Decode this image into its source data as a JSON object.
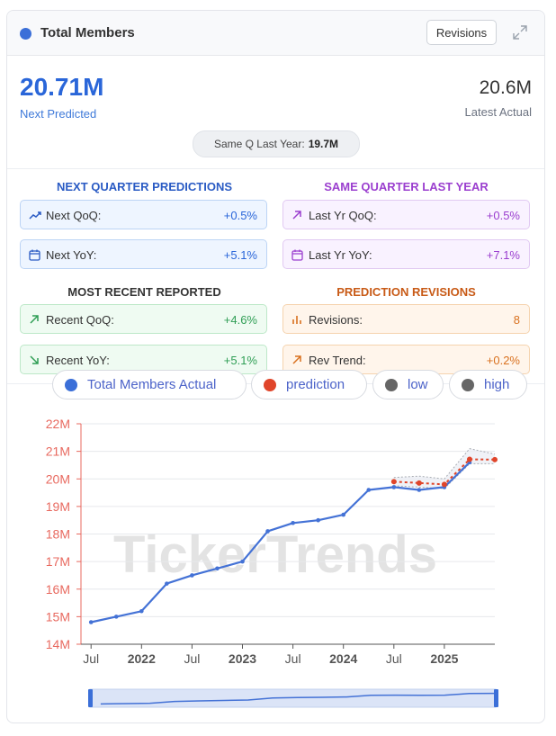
{
  "header": {
    "title": "Total Members",
    "revisions_label": "Revisions",
    "expand_icon": "expand-icon"
  },
  "summary": {
    "predicted_value": "20.71M",
    "predicted_label": "Next Predicted",
    "actual_value": "20.6M",
    "actual_label": "Latest Actual",
    "same_q_label": "Same Q Last Year:",
    "same_q_value": "19.7M"
  },
  "sections": {
    "next_quarter": {
      "title": "NEXT QUARTER PREDICTIONS",
      "items": [
        {
          "label": "Next QoQ:",
          "value": "+0.5%",
          "icon": "trend-up-icon"
        },
        {
          "label": "Next YoY:",
          "value": "+5.1%",
          "icon": "calendar-icon"
        }
      ]
    },
    "same_quarter": {
      "title": "SAME QUARTER LAST YEAR",
      "items": [
        {
          "label": "Last Yr QoQ:",
          "value": "+0.5%",
          "icon": "arrow-up-right-icon"
        },
        {
          "label": "Last Yr YoY:",
          "value": "+7.1%",
          "icon": "calendar-icon"
        }
      ]
    },
    "recent": {
      "title": "MOST RECENT REPORTED",
      "items": [
        {
          "label": "Recent QoQ:",
          "value": "+4.6%",
          "icon": "arrow-up-right-icon"
        },
        {
          "label": "Recent YoY:",
          "value": "+5.1%",
          "icon": "arrow-down-right-icon"
        }
      ]
    },
    "revisions": {
      "title": "PREDICTION REVISIONS",
      "items": [
        {
          "label": "Revisions:",
          "value": "8",
          "icon": "bar-chart-icon"
        },
        {
          "label": "Rev Trend:",
          "value": "+0.2%",
          "icon": "arrow-up-right-icon"
        }
      ]
    }
  },
  "colors": {
    "accent_blue": "#2a66d9",
    "actual_line": "#4472d6",
    "prediction": "#e0452a",
    "green": "#2f9e55",
    "purple": "#9b3fcf",
    "orange": "#d9711f",
    "axis": "#e8695f"
  },
  "legend": [
    {
      "label": "Total Members Actual",
      "color": "#3b6fd8"
    },
    {
      "label": "prediction",
      "color": "#e0452a"
    },
    {
      "label": "low",
      "color": "#666666"
    },
    {
      "label": "high",
      "color": "#666666"
    }
  ],
  "watermark": "TickerTrends",
  "chart_data": {
    "type": "line",
    "ylim": [
      14,
      22
    ],
    "y_ticks": [
      "14M",
      "15M",
      "16M",
      "17M",
      "18M",
      "19M",
      "20M",
      "21M",
      "22M"
    ],
    "x_ticks": [
      "Jul",
      "2022",
      "Jul",
      "2023",
      "Jul",
      "2024",
      "Jul",
      "2025"
    ],
    "x_tick_positions": [
      2021.5,
      2022.0,
      2022.5,
      2023.0,
      2023.5,
      2024.0,
      2024.5,
      2025.0
    ],
    "xlim": [
      2021.4,
      2025.5
    ],
    "series": [
      {
        "name": "Total Members Actual",
        "x": [
          2021.5,
          2021.75,
          2022.0,
          2022.25,
          2022.5,
          2022.75,
          2023.0,
          2023.25,
          2023.5,
          2023.75,
          2024.0,
          2024.25,
          2024.5,
          2024.75,
          2025.0,
          2025.25
        ],
        "values": [
          14.8,
          15.0,
          15.2,
          16.2,
          16.5,
          16.75,
          17.0,
          18.1,
          18.4,
          18.5,
          18.7,
          19.6,
          19.7,
          19.6,
          19.7,
          20.6
        ]
      },
      {
        "name": "prediction",
        "x": [
          2024.5,
          2024.75,
          2025.0,
          2025.25,
          2025.5
        ],
        "values": [
          19.9,
          19.85,
          19.8,
          20.71,
          20.7
        ]
      },
      {
        "name": "low",
        "x": [
          2024.5,
          2024.75,
          2025.0,
          2025.25,
          2025.5
        ],
        "values": [
          19.75,
          19.7,
          19.65,
          20.55,
          20.55
        ]
      },
      {
        "name": "high",
        "x": [
          2024.5,
          2024.75,
          2025.0,
          2025.25,
          2025.5
        ],
        "values": [
          20.05,
          20.1,
          20.0,
          21.1,
          20.9
        ]
      }
    ]
  }
}
